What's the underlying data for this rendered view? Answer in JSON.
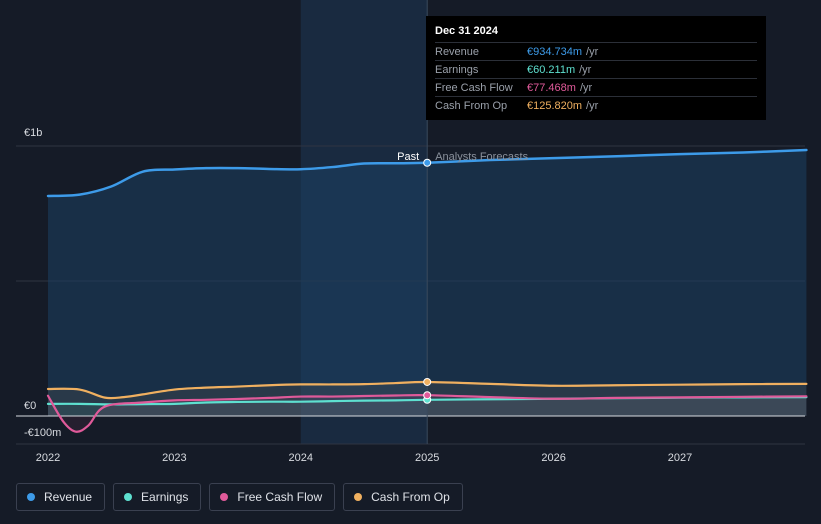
{
  "tooltip": {
    "date": "Dec 31 2024",
    "rows": [
      {
        "label": "Revenue",
        "value": "€934.734m",
        "unit": "/yr",
        "color": "#3d9be9"
      },
      {
        "label": "Earnings",
        "value": "€60.211m",
        "unit": "/yr",
        "color": "#5ee0d0"
      },
      {
        "label": "Free Cash Flow",
        "value": "€77.468m",
        "unit": "/yr",
        "color": "#e05a9a"
      },
      {
        "label": "Cash From Op",
        "value": "€125.820m",
        "unit": "/yr",
        "color": "#f0b060"
      }
    ]
  },
  "chart_data": {
    "type": "line",
    "yticks": [
      {
        "label": "€1b",
        "value": 1000
      },
      {
        "label": "€0",
        "value": 0
      },
      {
        "label": "-€100m",
        "value": -100
      }
    ],
    "ylim": [
      -100,
      1000
    ],
    "xlim": [
      2021.8,
      2028.0
    ],
    "xticks": [
      {
        "label": "2022",
        "value": 2022
      },
      {
        "label": "2023",
        "value": 2023
      },
      {
        "label": "2024",
        "value": 2024
      },
      {
        "label": "2025",
        "value": 2025
      },
      {
        "label": "2026",
        "value": 2026
      },
      {
        "label": "2027",
        "value": 2027
      }
    ],
    "past_label": "Past",
    "forecast_label": "Analysts Forecasts",
    "divider_x": 2025.0,
    "highlight_start": 2024.0,
    "series": [
      {
        "name": "Revenue",
        "color": "#3d9be9",
        "points": [
          [
            2022.0,
            815
          ],
          [
            2022.25,
            820
          ],
          [
            2022.5,
            850
          ],
          [
            2022.75,
            905
          ],
          [
            2023.0,
            913
          ],
          [
            2023.25,
            918
          ],
          [
            2023.5,
            918
          ],
          [
            2023.75,
            915
          ],
          [
            2024.0,
            914
          ],
          [
            2024.25,
            922
          ],
          [
            2024.5,
            935
          ],
          [
            2024.75,
            936
          ],
          [
            2025.0,
            938
          ],
          [
            2025.5,
            948
          ],
          [
            2026.0,
            955
          ],
          [
            2026.5,
            962
          ],
          [
            2027.0,
            970
          ],
          [
            2027.5,
            976
          ],
          [
            2028.0,
            985
          ]
        ]
      },
      {
        "name": "Earnings",
        "color": "#5ee0d0",
        "points": [
          [
            2022.0,
            45
          ],
          [
            2022.25,
            45
          ],
          [
            2022.5,
            43
          ],
          [
            2022.75,
            44
          ],
          [
            2023.0,
            45
          ],
          [
            2023.25,
            50
          ],
          [
            2023.5,
            52
          ],
          [
            2023.75,
            53
          ],
          [
            2024.0,
            53
          ],
          [
            2024.25,
            55
          ],
          [
            2024.5,
            57
          ],
          [
            2024.75,
            58
          ],
          [
            2025.0,
            60
          ],
          [
            2025.5,
            62
          ],
          [
            2026.0,
            64
          ],
          [
            2026.5,
            66
          ],
          [
            2027.0,
            68
          ],
          [
            2027.5,
            69
          ],
          [
            2028.0,
            70
          ]
        ]
      },
      {
        "name": "Free Cash Flow",
        "color": "#e05a9a",
        "points": [
          [
            2022.0,
            75
          ],
          [
            2022.12,
            -20
          ],
          [
            2022.22,
            -58
          ],
          [
            2022.32,
            -35
          ],
          [
            2022.45,
            35
          ],
          [
            2022.75,
            50
          ],
          [
            2023.0,
            58
          ],
          [
            2023.25,
            60
          ],
          [
            2023.5,
            63
          ],
          [
            2023.75,
            67
          ],
          [
            2024.0,
            72
          ],
          [
            2024.25,
            72
          ],
          [
            2024.5,
            74
          ],
          [
            2024.75,
            76
          ],
          [
            2025.0,
            77
          ],
          [
            2025.5,
            70
          ],
          [
            2026.0,
            64
          ],
          [
            2026.5,
            67
          ],
          [
            2027.0,
            69
          ],
          [
            2027.5,
            71
          ],
          [
            2028.0,
            73
          ]
        ]
      },
      {
        "name": "Cash From Op",
        "color": "#f0b060",
        "points": [
          [
            2022.0,
            100
          ],
          [
            2022.25,
            98
          ],
          [
            2022.45,
            68
          ],
          [
            2022.6,
            70
          ],
          [
            2022.75,
            80
          ],
          [
            2023.0,
            98
          ],
          [
            2023.25,
            105
          ],
          [
            2023.5,
            109
          ],
          [
            2023.75,
            114
          ],
          [
            2024.0,
            117
          ],
          [
            2024.25,
            117
          ],
          [
            2024.5,
            118
          ],
          [
            2024.75,
            122
          ],
          [
            2025.0,
            126
          ],
          [
            2025.5,
            119
          ],
          [
            2026.0,
            112
          ],
          [
            2026.5,
            114
          ],
          [
            2027.0,
            116
          ],
          [
            2027.5,
            118
          ],
          [
            2028.0,
            119
          ]
        ]
      }
    ]
  }
}
